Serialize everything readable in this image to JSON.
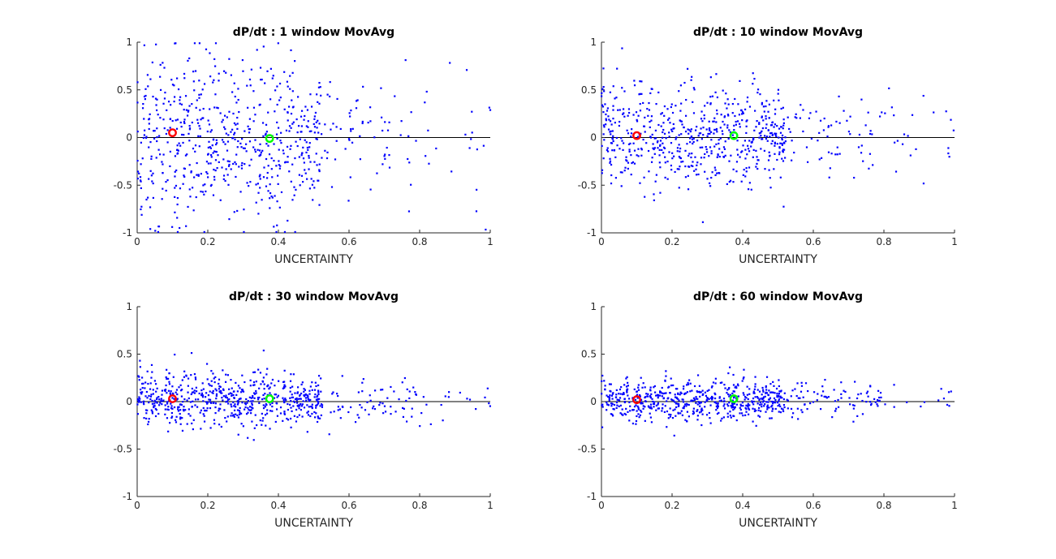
{
  "colors": {
    "points": "#0000ff",
    "marker_red": "#ff0000",
    "marker_green": "#00ff00",
    "axis": "#262626",
    "zero_line": "#000000"
  },
  "chart_data": [
    {
      "type": "scatter",
      "title": "dP/dt : 1 window MovAvg",
      "xlabel": "UNCERTAINTY",
      "ylabel": "",
      "xlim": [
        0,
        1
      ],
      "ylim": [
        -1,
        1
      ],
      "xticks": [
        "0",
        "0.2",
        "0.4",
        "0.6",
        "0.8",
        "1"
      ],
      "yticks": [
        "-1",
        "-0.5",
        "0",
        "0.5",
        "1"
      ],
      "grid": false,
      "spread_std": 0.45,
      "series": [
        {
          "markers": [
            {
              "x": 0.1,
              "y": 0.05,
              "color": "#ff0000"
            },
            {
              "x": 0.375,
              "y": -0.01,
              "color": "#00ff00"
            }
          ]
        }
      ]
    },
    {
      "type": "scatter",
      "title": "dP/dt : 10 window MovAvg",
      "xlabel": "UNCERTAINTY",
      "ylabel": "",
      "xlim": [
        0,
        1
      ],
      "ylim": [
        -1,
        1
      ],
      "xticks": [
        "0",
        "0.2",
        "0.4",
        "0.6",
        "0.8",
        "1"
      ],
      "yticks": [
        "-1",
        "-0.5",
        "0",
        "0.5",
        "1"
      ],
      "grid": false,
      "spread_std": 0.28,
      "series": [
        {
          "markers": [
            {
              "x": 0.1,
              "y": 0.02,
              "color": "#ff0000"
            },
            {
              "x": 0.375,
              "y": 0.02,
              "color": "#00ff00"
            }
          ]
        }
      ]
    },
    {
      "type": "scatter",
      "title": "dP/dt : 30 window MovAvg",
      "xlabel": "UNCERTAINTY",
      "ylabel": "",
      "xlim": [
        0,
        1
      ],
      "ylim": [
        -1,
        1
      ],
      "xticks": [
        "0",
        "0.2",
        "0.4",
        "0.6",
        "0.8",
        "1"
      ],
      "yticks": [
        "-1",
        "-0.5",
        "0",
        "0.5",
        "1"
      ],
      "grid": false,
      "spread_std": 0.15,
      "series": [
        {
          "markers": [
            {
              "x": 0.1,
              "y": 0.03,
              "color": "#ff0000"
            },
            {
              "x": 0.375,
              "y": 0.03,
              "color": "#00ff00"
            }
          ]
        }
      ]
    },
    {
      "type": "scatter",
      "title": "dP/dt : 60 window MovAvg",
      "xlabel": "UNCERTAINTY",
      "ylabel": "",
      "xlim": [
        0,
        1
      ],
      "ylim": [
        -1,
        1
      ],
      "xticks": [
        "0",
        "0.2",
        "0.4",
        "0.6",
        "0.8",
        "1"
      ],
      "yticks": [
        "-1",
        "-0.5",
        "0",
        "0.5",
        "1"
      ],
      "grid": false,
      "spread_std": 0.12,
      "series": [
        {
          "markers": [
            {
              "x": 0.1,
              "y": 0.02,
              "color": "#ff0000"
            },
            {
              "x": 0.375,
              "y": 0.03,
              "color": "#00ff00"
            }
          ]
        }
      ]
    }
  ]
}
